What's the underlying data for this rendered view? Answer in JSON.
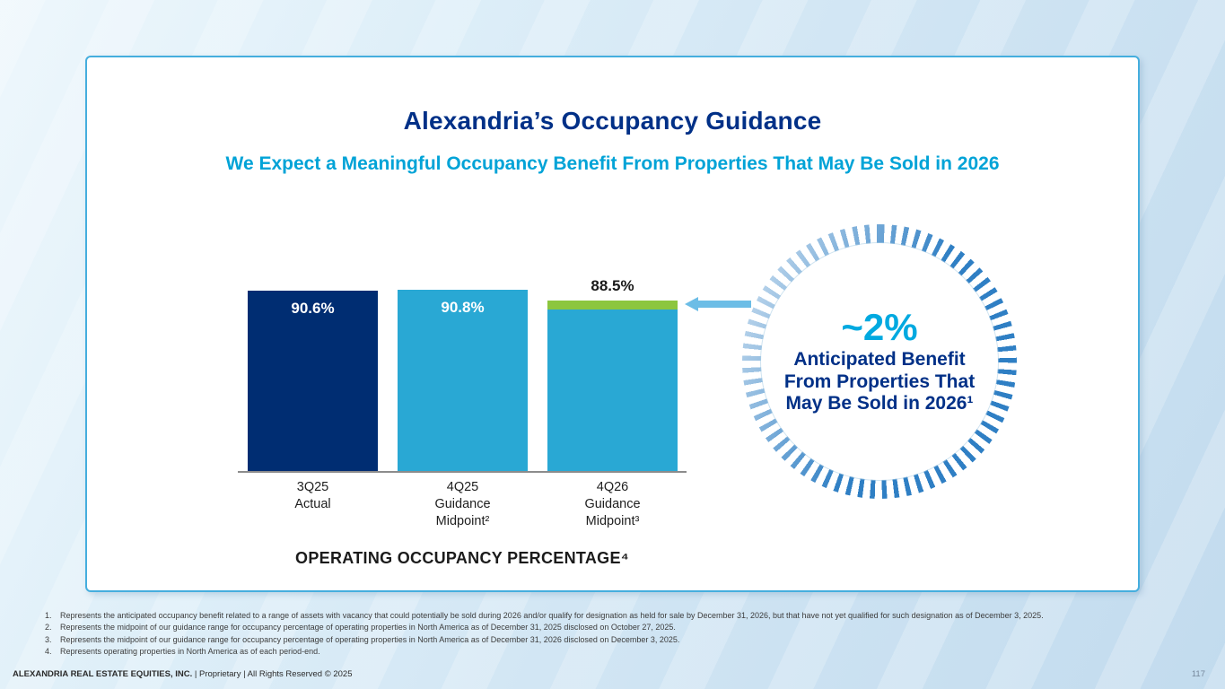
{
  "slide": {
    "title": "Alexandria’s Occupancy Guidance",
    "subtitle": "We Expect a Meaningful Occupancy Benefit From Properties That May Be Sold in 2026"
  },
  "chart_data": {
    "type": "bar",
    "title": "Alexandria’s Occupancy Guidance",
    "subtitle": "We Expect a Meaningful Occupancy Benefit From Properties That May Be Sold in 2026",
    "categories": [
      "3Q25 Actual",
      "4Q25 Guidance Midpoint²",
      "4Q26 Guidance Midpoint³"
    ],
    "categories_lines": [
      [
        "3Q25",
        "Actual"
      ],
      [
        "4Q25",
        "Guidance",
        "Midpoint²"
      ],
      [
        "4Q26",
        "Guidance",
        "Midpoint³"
      ]
    ],
    "values": [
      90.6,
      90.8,
      88.5
    ],
    "labels": [
      "90.6%",
      "90.8%",
      "88.5%"
    ],
    "label_outside": [
      false,
      false,
      true
    ],
    "bar_colors": [
      "#002d72",
      "#29a8d4",
      "#29a8d4"
    ],
    "highlight": {
      "bar_index": 2,
      "approx_value": 2,
      "color": "#8cc63e",
      "meaning": "~2% anticipated occupancy benefit from properties that may be sold in 2026"
    },
    "xlabel": "OPERATING OCCUPANCY PERCENTAGE⁴",
    "ylabel": "",
    "ylim": [
      0,
      100
    ],
    "grid": false,
    "legend": "none",
    "unit": "%"
  },
  "callout": {
    "headline": "~2%",
    "body": "Anticipated Benefit From Properties That May Be Sold in 2026¹"
  },
  "footnotes": [
    {
      "num": "1.",
      "text": "Represents the anticipated occupancy benefit related to a range of assets with vacancy that could potentially be sold during 2026 and/or qualify for designation as held for sale by December 31, 2026, but that have not yet qualified for such designation as of December 3, 2025."
    },
    {
      "num": "2.",
      "text": "Represents the midpoint of our guidance range for occupancy percentage of operating properties in North America as of December 31, 2025 disclosed on October 27, 2025."
    },
    {
      "num": "3.",
      "text": "Represents the midpoint of our guidance range for occupancy percentage of operating properties in North America as of December 31, 2026 disclosed on December 3, 2025."
    },
    {
      "num": "4.",
      "text": "Represents operating properties in North America as of each period-end."
    }
  ],
  "footer": {
    "company": "ALEXANDRIA REAL ESTATE EQUITIES, INC.",
    "rest": " | Proprietary | All Rights Reserved © 2025",
    "page": "117"
  }
}
